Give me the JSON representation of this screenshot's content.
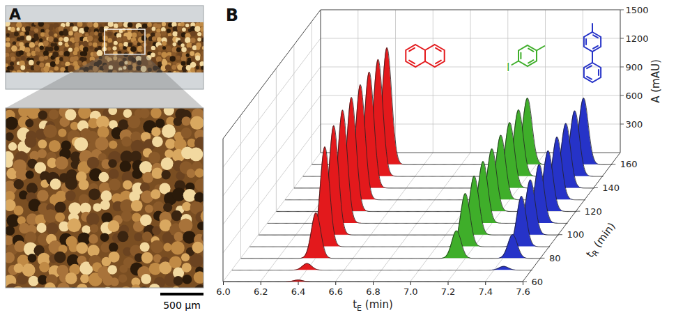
{
  "image_panel": {
    "label": "A",
    "scale_bar": "500 μm"
  },
  "chart_data": {
    "type": "waterfall",
    "panel_label": "B",
    "xlabel": "tE (min)",
    "ylabel": "A (mAU)",
    "zlabel": "tR (min)",
    "xlim": [
      6.0,
      7.6
    ],
    "xticks": [
      {
        "value": 6,
        "label": "6.0"
      },
      6.2,
      6.4,
      6.6,
      6.8,
      {
        "value": 7,
        "label": "7.0"
      },
      7.2,
      7.4,
      7.6
    ],
    "ylim": [
      0,
      1500
    ],
    "yticks": [
      300,
      600,
      900,
      1200,
      1500
    ],
    "zlim": [
      60,
      170
    ],
    "zticks": [
      60,
      80,
      100,
      120,
      140,
      160
    ],
    "z": [
      60,
      70,
      80,
      90,
      100,
      110,
      120,
      130,
      140,
      150,
      160
    ],
    "grid": true,
    "series": [
      {
        "color": "#e3191c",
        "peak_x": 6.4,
        "values": [
          20,
          70,
          480,
          1050,
          1150,
          1190,
          1200,
          1210,
          1220,
          1230,
          1230
        ]
      },
      {
        "color": "#3fae2a",
        "peak_x": 7.15,
        "structure_label": "I",
        "values": [
          0,
          0,
          290,
          560,
          620,
          650,
          660,
          680,
          690,
          700,
          700
        ]
      },
      {
        "color": "#2633c8",
        "peak_x": 7.45,
        "values": [
          0,
          40,
          250,
          530,
          580,
          620,
          640,
          660,
          680,
          690,
          700
        ]
      }
    ]
  }
}
